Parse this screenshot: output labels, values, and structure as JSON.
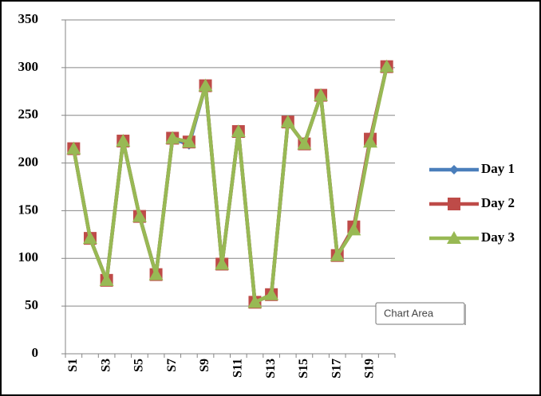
{
  "chart_data": {
    "type": "line",
    "categories": [
      "S1",
      null,
      "S3",
      null,
      "S5",
      null,
      "S7",
      null,
      "S9",
      null,
      "S11",
      null,
      "S13",
      null,
      "S15",
      null,
      "S17",
      null,
      "S19",
      null
    ],
    "series": [
      {
        "name": "Day 1",
        "color": "#4a7ebb",
        "marker": "diamond",
        "values": [
          215,
          121,
          77,
          223,
          144,
          83,
          226,
          219,
          281,
          94,
          233,
          54,
          62,
          243,
          220,
          271,
          103,
          133,
          225,
          301
        ]
      },
      {
        "name": "Day 2",
        "color": "#be4b48",
        "marker": "square",
        "values": [
          215,
          121,
          77,
          223,
          144,
          83,
          226,
          222,
          281,
          94,
          233,
          54,
          62,
          243,
          220,
          271,
          103,
          133,
          225,
          301
        ]
      },
      {
        "name": "Day 3",
        "color": "#98b954",
        "marker": "triangle",
        "values": [
          215,
          121,
          77,
          223,
          144,
          83,
          226,
          222,
          281,
          94,
          233,
          54,
          62,
          243,
          220,
          271,
          103,
          130,
          222,
          301
        ]
      }
    ],
    "ylim": [
      0,
      350
    ],
    "yticks": [
      0,
      50,
      100,
      150,
      200,
      250,
      300,
      350
    ],
    "grid": true,
    "legend": "right",
    "tooltip": "Chart Area"
  }
}
